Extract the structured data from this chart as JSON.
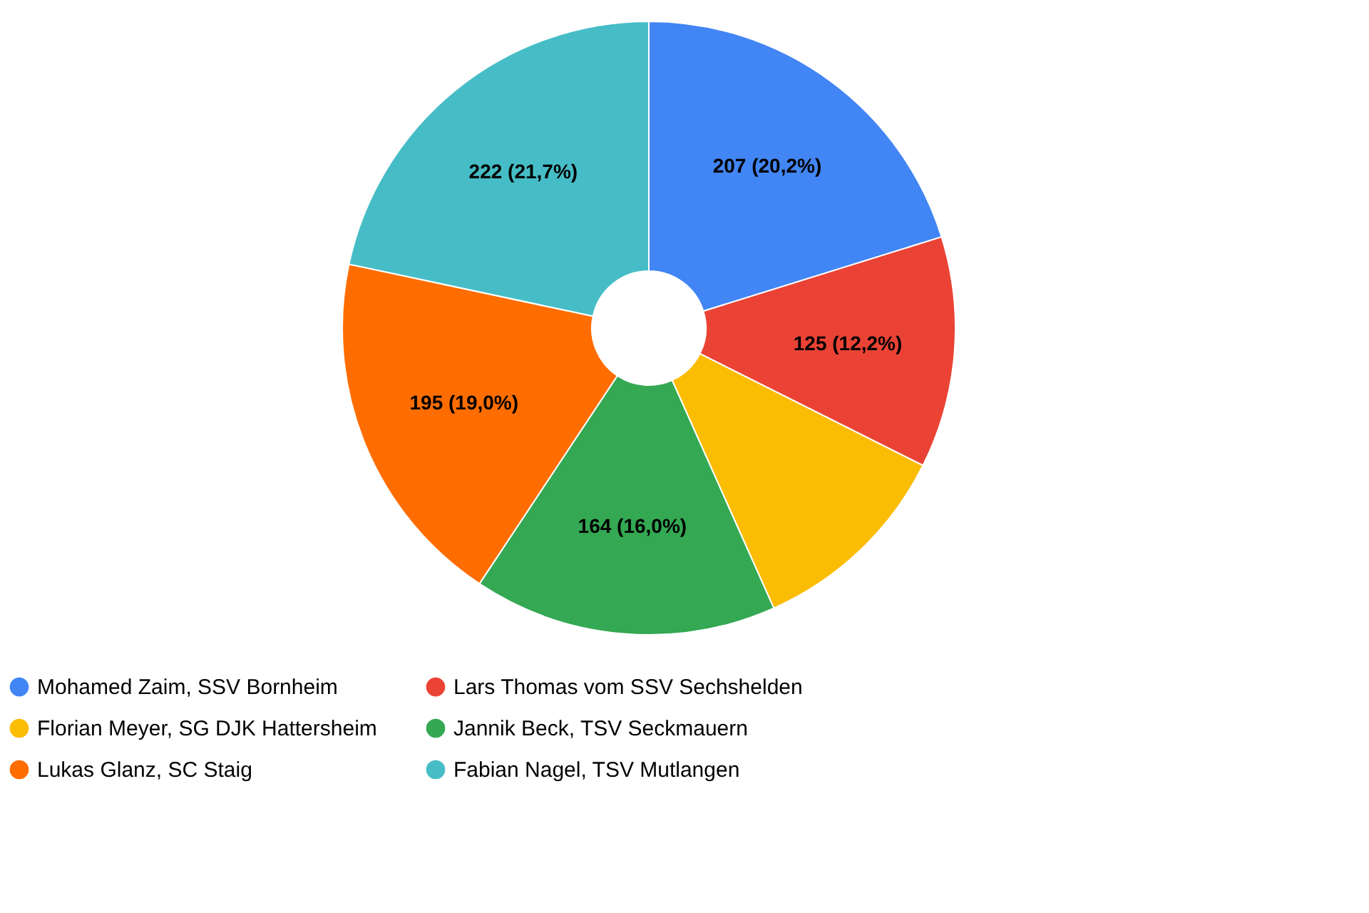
{
  "chart_data": {
    "type": "donut",
    "categories": [
      "Mohamed Zaim, SSV Bornheim",
      "Lars Thomas vom SSV Sechshelden",
      "Florian Meyer, SG DJK Hattersheim",
      "Jannik Beck, TSV Seckmauern",
      "Lukas Glanz, SC Staig",
      "Fabian Nagel, TSV Mutlangen"
    ],
    "values": [
      207,
      125,
      112,
      164,
      195,
      222
    ],
    "value_labels": [
      "207 (20,2%)",
      "125 (12,2%)",
      null,
      "164 (16,0%)",
      "195 (19,0%)",
      "222 (21,7%)"
    ],
    "colors": [
      "#4285f4",
      "#ea4335",
      "#fbbc04",
      "#34a853",
      "#ff6d01",
      "#46bdc6"
    ],
    "legend": "bottom"
  }
}
